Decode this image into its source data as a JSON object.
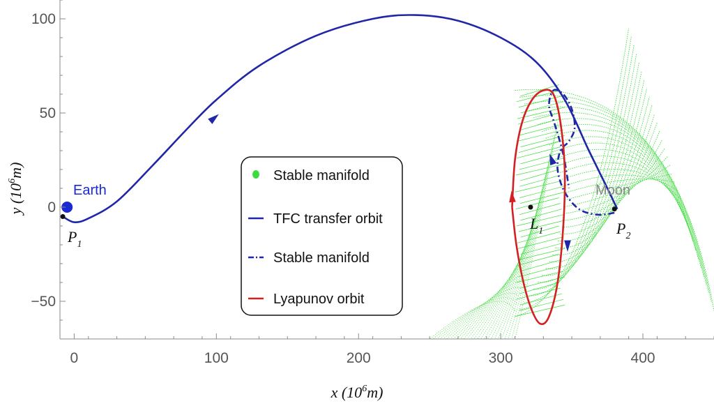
{
  "chart_data": {
    "type": "line",
    "xlabel": "x (10",
    "xlabel_sup": "6",
    "xlabel_unit": "m)",
    "ylabel": "y (10",
    "ylabel_sup": "6",
    "ylabel_unit": "m)",
    "xlim": [
      -10,
      450
    ],
    "ylim": [
      -70,
      110
    ],
    "xticks": [
      0,
      100,
      200,
      300,
      400
    ],
    "yticks": [
      -50,
      0,
      50,
      100
    ],
    "xtick_labels": [
      "0",
      "100",
      "200",
      "300",
      "400"
    ],
    "ytick_labels": [
      "-50",
      "0",
      "50",
      "100"
    ],
    "grid": false,
    "legend_placement": "center",
    "colors": {
      "transfer": "#1f27a8",
      "manifold_dashed": "#1f27a8",
      "lyapunov": "#d42020",
      "stable_manifold": "#3ddc3d",
      "earth": "#1a2ad0",
      "moon_label": "#888888"
    },
    "legend": [
      {
        "label": "Stable manifold",
        "style": "dot",
        "color": "#3ddc3d"
      },
      {
        "label": "TFC transfer orbit",
        "style": "solid",
        "color": "#1f27a8"
      },
      {
        "label": "Stable manifold",
        "style": "dashdot",
        "color": "#1f27a8"
      },
      {
        "label": "Lyapunov orbit",
        "style": "solid",
        "color": "#d42020"
      }
    ],
    "annotations": {
      "earth": {
        "text": "Earth",
        "x": -5,
        "y": 0
      },
      "moon": {
        "text": "Moon",
        "x": 380,
        "y": 0
      },
      "p1": {
        "text": "P",
        "sub": "1",
        "x": -8,
        "y": -5
      },
      "l1": {
        "text": "L",
        "sub": "1",
        "x": 321,
        "y": 0
      },
      "p2": {
        "text": "P",
        "sub": "2",
        "x": 380,
        "y": -1
      }
    },
    "series": [
      {
        "name": "TFC transfer orbit",
        "style": "solid",
        "x": [
          -8,
          0,
          10,
          30,
          55,
          80,
          100,
          130,
          170,
          210,
          240,
          270,
          300,
          325,
          345,
          362,
          375,
          382
        ],
        "y": [
          -5,
          -8,
          -6,
          3,
          22,
          42,
          57,
          75,
          91,
          100,
          102,
          99,
          90,
          77,
          57,
          30,
          10,
          -1
        ]
      },
      {
        "name": "Stable manifold",
        "style": "dashdot",
        "x": [
          380,
          368,
          355,
          345,
          340,
          342,
          348,
          352,
          350,
          344,
          337,
          334,
          338,
          344,
          348
        ],
        "y": [
          -3,
          -4,
          -1,
          8,
          20,
          30,
          35,
          42,
          52,
          60,
          62,
          54,
          44,
          28,
          10
        ]
      },
      {
        "name": "Lyapunov orbit",
        "style": "solid",
        "x": [
          308,
          310,
          315,
          322,
          330,
          337,
          342,
          345,
          344,
          340,
          334,
          328,
          322,
          316,
          311,
          308
        ],
        "y": [
          0,
          25,
          45,
          57,
          62,
          60,
          45,
          20,
          -10,
          -40,
          -58,
          -62,
          -55,
          -40,
          -20,
          0
        ]
      },
      {
        "name": "Stable manifold",
        "style": "dot",
        "type": "trajectory-family"
      }
    ]
  }
}
